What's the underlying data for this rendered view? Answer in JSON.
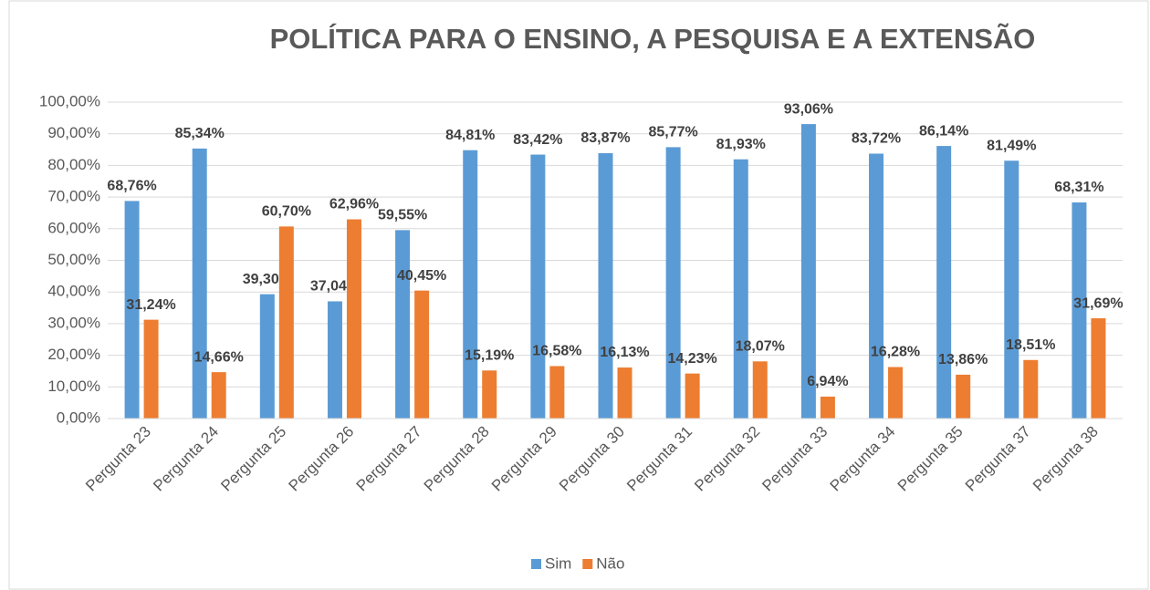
{
  "chart_data": {
    "type": "bar",
    "title": "POLÍTICA PARA O ENSINO, A PESQUISA E A EXTENSÃO",
    "categories": [
      "Pergunta 23",
      "Pergunta 24",
      "Pergunta 25",
      "Pergunta 26",
      "Pergunta 27",
      "Pergunta 28",
      "Pergunta 29",
      "Pergunta 30",
      "Pergunta 31",
      "Pergunta 32",
      "Pergunta 33",
      "Pergunta 34",
      "Pergunta 35",
      "Pergunta 37",
      "Pergunta 38"
    ],
    "series": [
      {
        "name": "Sim",
        "color": "#5b9bd5",
        "values": [
          68.76,
          85.34,
          39.3,
          37.04,
          59.55,
          84.81,
          83.42,
          83.87,
          85.77,
          81.93,
          93.06,
          83.72,
          86.14,
          81.49,
          68.31
        ],
        "value_labels": [
          "68,76%",
          "85,34%",
          "39,30%",
          "37,04%",
          "59,55%",
          "84,81%",
          "83,42%",
          "83,87%",
          "85,77%",
          "81,93%",
          "93,06%",
          "83,72%",
          "86,14%",
          "81,49%",
          "68,31%"
        ]
      },
      {
        "name": "Não",
        "color": "#ed7d31",
        "values": [
          31.24,
          14.66,
          60.7,
          62.96,
          40.45,
          15.19,
          16.58,
          16.13,
          14.23,
          18.07,
          6.94,
          16.28,
          13.86,
          18.51,
          31.69
        ],
        "value_labels": [
          "31,24%",
          "14,66%",
          "60,70%",
          "62,96%",
          "40,45%",
          "15,19%",
          "16,58%",
          "16,13%",
          "14,23%",
          "18,07%",
          "6,94%",
          "16,28%",
          "13,86%",
          "18,51%",
          "31,69%"
        ]
      }
    ],
    "ylim": [
      0,
      100
    ],
    "yticks": [
      {
        "value": 0,
        "label": "0,00%"
      },
      {
        "value": 10,
        "label": "10,00%"
      },
      {
        "value": 20,
        "label": "20,00%"
      },
      {
        "value": 30,
        "label": "30,00%"
      },
      {
        "value": 40,
        "label": "40,00%"
      },
      {
        "value": 50,
        "label": "50,00%"
      },
      {
        "value": 60,
        "label": "60,00%"
      },
      {
        "value": 70,
        "label": "70,00%"
      },
      {
        "value": 80,
        "label": "80,00%"
      },
      {
        "value": 90,
        "label": "90,00%"
      },
      {
        "value": 100,
        "label": "100,00%"
      }
    ],
    "grid": true,
    "legend": "bottom"
  }
}
